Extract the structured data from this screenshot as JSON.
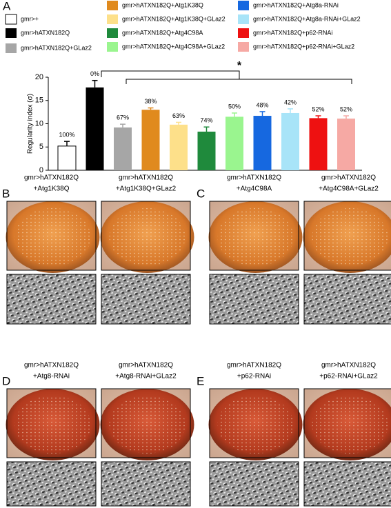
{
  "chart_data": {
    "type": "bar",
    "panel": "A",
    "ylabel": "Regularity index (σ)",
    "categories": [
      "gmr>+",
      "gmr>hATXN182Q",
      "gmr>hATXN182Q+GLaz2",
      "gmr>hATXN182Q+Atg1K38Q",
      "gmr>hATXN182Q+Atg1K38Q+GLaz2",
      "gmr>hATXN182Q+Atg4C98A",
      "gmr>hATXN182Q+Atg4C98A+GLaz2",
      "gmr>hATXN182Q+Atg8a-RNAi",
      "gmr>hATXN182Q+Atg8a-RNAi+GLaz2",
      "gmr>hATXN182Q+p62-RNAi",
      "gmr>hATXN182Q+p62-RNAi+GLaz2"
    ],
    "values": [
      5.2,
      17.8,
      9.2,
      13.0,
      9.8,
      8.3,
      11.5,
      11.7,
      12.3,
      11.2,
      11.1
    ],
    "errors": [
      1.0,
      1.5,
      0.7,
      0.4,
      0.5,
      1.0,
      0.8,
      0.9,
      0.9,
      0.5,
      0.6
    ],
    "colors": [
      "#ffffff",
      "#000000",
      "#a6a6a6",
      "#e08a1e",
      "#fde08a",
      "#1f8a3c",
      "#9af58f",
      "#1668e0",
      "#a8e4f8",
      "#ee1111",
      "#f6a9a4"
    ],
    "annotations": [
      "100%",
      "0%",
      "67%",
      "38%",
      "63%",
      "74%",
      "50%",
      "48%",
      "42%",
      "52%",
      "52%"
    ],
    "significance": "*",
    "ylim": [
      0,
      20
    ],
    "yticks": [
      0,
      5,
      10,
      15,
      20
    ]
  },
  "panels": [
    {
      "letter": "B",
      "images": [
        {
          "line1": "gmr>hATXN182Q",
          "line2": "+Atg1K38Q"
        },
        {
          "line1": "gmr>hATXN182Q",
          "line2": "+Atg1K38Q+GLaz2"
        }
      ]
    },
    {
      "letter": "C",
      "images": [
        {
          "line1": "gmr>hATXN182Q",
          "line2": "+Atg4C98A"
        },
        {
          "line1": "gmr>hATXN182Q",
          "line2": "+Atg4C98A+GLaz2"
        }
      ]
    },
    {
      "letter": "D",
      "images": [
        {
          "line1": "gmr>hATXN182Q",
          "line2": "+Atg8-RNAi"
        },
        {
          "line1": "gmr>hATXN182Q",
          "line2": "+Atg8-RNAi+GLaz2"
        }
      ]
    },
    {
      "letter": "E",
      "images": [
        {
          "line1": "gmr>hATXN182Q",
          "line2": "+p62-RNAi"
        },
        {
          "line1": "gmr>hATXN182Q",
          "line2": "+p62-RNAi+GLaz2"
        }
      ]
    }
  ]
}
